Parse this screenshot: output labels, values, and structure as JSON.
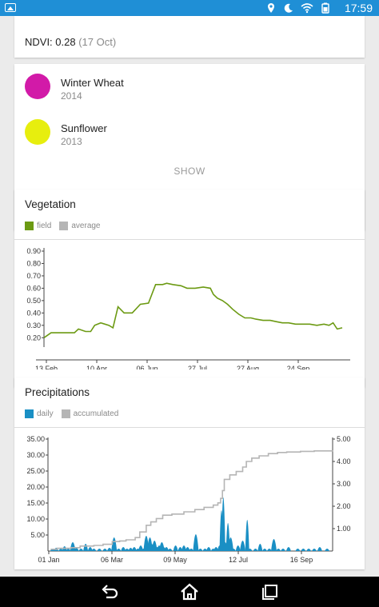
{
  "status_bar": {
    "time": "17:59",
    "icons": [
      "image-icon",
      "location-icon",
      "moon-icon",
      "wifi-icon",
      "battery-icon"
    ]
  },
  "ndvi": {
    "label": "NDVI: 0.28",
    "date": "(17 Oct)"
  },
  "crops": [
    {
      "name": "Winter Wheat",
      "year": "2014",
      "color": "#d21aa8"
    },
    {
      "name": "Sunflower",
      "year": "2013",
      "color": "#e7ee0e"
    }
  ],
  "show_label": "SHOW",
  "vegetation": {
    "title": "Vegetation",
    "legend": [
      {
        "label": "field",
        "color": "#6c9a13"
      },
      {
        "label": "average",
        "color": "#b5b5b5"
      }
    ]
  },
  "precipitations": {
    "title": "Precipitations",
    "legend": [
      {
        "label": "daily",
        "color": "#1a8fc4"
      },
      {
        "label": "accumulated",
        "color": "#b5b5b5"
      }
    ]
  },
  "chart_data": [
    {
      "type": "line",
      "title": "",
      "x_ticks": [
        "13 Feb",
        "10 Apr",
        "06 Jun",
        "27 Jul",
        "27 Aug",
        "24 Sep"
      ],
      "y_ticks": [
        "0.90",
        "0.80",
        "0.70",
        "0.60",
        "0.50",
        "0.40",
        "0.30",
        "0.20"
      ],
      "ylim": [
        0.15,
        0.9
      ],
      "series": [
        {
          "name": "field",
          "color": "#6c9a13",
          "points": [
            [
              "02-13",
              0.2
            ],
            [
              "02-20",
              0.24
            ],
            [
              "03-07",
              0.24
            ],
            [
              "03-15",
              0.24
            ],
            [
              "03-19",
              0.27
            ],
            [
              "03-26",
              0.25
            ],
            [
              "03-31",
              0.25
            ],
            [
              "04-04",
              0.3
            ],
            [
              "04-10",
              0.32
            ],
            [
              "04-18",
              0.3
            ],
            [
              "04-22",
              0.28
            ],
            [
              "04-27",
              0.45
            ],
            [
              "05-03",
              0.4
            ],
            [
              "05-11",
              0.4
            ],
            [
              "05-19",
              0.47
            ],
            [
              "05-27",
              0.48
            ],
            [
              "06-03",
              0.63
            ],
            [
              "06-10",
              0.63
            ],
            [
              "06-14",
              0.64
            ],
            [
              "06-20",
              0.63
            ],
            [
              "06-28",
              0.62
            ],
            [
              "07-04",
              0.6
            ],
            [
              "07-12",
              0.6
            ],
            [
              "07-20",
              0.61
            ],
            [
              "07-27",
              0.6
            ],
            [
              "07-30",
              0.55
            ],
            [
              "08-03",
              0.52
            ],
            [
              "08-08",
              0.5
            ],
            [
              "08-13",
              0.47
            ],
            [
              "08-18",
              0.43
            ],
            [
              "08-24",
              0.39
            ],
            [
              "08-30",
              0.36
            ],
            [
              "09-05",
              0.36
            ],
            [
              "09-10",
              0.35
            ],
            [
              "09-17",
              0.34
            ],
            [
              "09-24",
              0.34
            ],
            [
              "09-30",
              0.33
            ],
            [
              "10-06",
              0.32
            ],
            [
              "10-12",
              0.32
            ],
            [
              "10-19",
              0.31
            ],
            [
              "10-26",
              0.31
            ],
            [
              "11-02",
              0.31
            ],
            [
              "11-09",
              0.3
            ],
            [
              "11-16",
              0.31
            ],
            [
              "11-21",
              0.3
            ],
            [
              "11-25",
              0.32
            ],
            [
              "11-29",
              0.27
            ],
            [
              "12-04",
              0.28
            ]
          ]
        }
      ]
    },
    {
      "type": "bar",
      "title": "",
      "x_ticks": [
        "01 Jan",
        "06 Mar",
        "09 May",
        "12 Jul",
        "16 Sep"
      ],
      "y_left_ticks": [
        "35.00",
        "30.00",
        "25.00",
        "20.00",
        "15.00",
        "10.00",
        "5.00"
      ],
      "y_right_ticks": [
        "5.00",
        "4.00",
        "3.00",
        "2.00",
        "1.00"
      ],
      "ylim_left": [
        0,
        35
      ],
      "ylim_right": [
        0,
        5
      ],
      "xlim_days": [
        0,
        310
      ],
      "series": [
        {
          "name": "daily",
          "color": "#1a8fc4",
          "points": [
            [
              5,
              1
            ],
            [
              9,
              1.5
            ],
            [
              14,
              1
            ],
            [
              18,
              2.5
            ],
            [
              22,
              1
            ],
            [
              27,
              5
            ],
            [
              31,
              1.5
            ],
            [
              36,
              1
            ],
            [
              41,
              4
            ],
            [
              46,
              2
            ],
            [
              50,
              1
            ],
            [
              56,
              1
            ],
            [
              62,
              1
            ],
            [
              67,
              1.5
            ],
            [
              72,
              8
            ],
            [
              77,
              1
            ],
            [
              82,
              2
            ],
            [
              86,
              1
            ],
            [
              90,
              1.5
            ],
            [
              94,
              2
            ],
            [
              98,
              1
            ],
            [
              101,
              3
            ],
            [
              104,
              1
            ],
            [
              107,
              9
            ],
            [
              109,
              2
            ],
            [
              111,
              8
            ],
            [
              113,
              4
            ],
            [
              116,
              6
            ],
            [
              119,
              2
            ],
            [
              121,
              3
            ],
            [
              124,
              5
            ],
            [
              126,
              2
            ],
            [
              129,
              2
            ],
            [
              133,
              1
            ],
            [
              139,
              3
            ],
            [
              144,
              2
            ],
            [
              148,
              3
            ],
            [
              152,
              2
            ],
            [
              156,
              1
            ],
            [
              161,
              10
            ],
            [
              166,
              1
            ],
            [
              171,
              1
            ],
            [
              175,
              2
            ],
            [
              180,
              1
            ],
            [
              183,
              2
            ],
            [
              187,
              3
            ],
            [
              189,
              25
            ],
            [
              191,
              33
            ],
            [
              193,
              5
            ],
            [
              196,
              17
            ],
            [
              199,
              8
            ],
            [
              202,
              1
            ],
            [
              207,
              3
            ],
            [
              212,
              6
            ],
            [
              217,
              19
            ],
            [
              220,
              1
            ],
            [
              226,
              1
            ],
            [
              231,
              4
            ],
            [
              236,
              1
            ],
            [
              241,
              1
            ],
            [
              246,
              7
            ],
            [
              251,
              1
            ],
            [
              256,
              1
            ],
            [
              262,
              2
            ],
            [
              272,
              1
            ],
            [
              278,
              1
            ],
            [
              284,
              1
            ],
            [
              290,
              1
            ],
            [
              296,
              2
            ],
            [
              304,
              1
            ]
          ]
        },
        {
          "name": "accumulated",
          "color": "#b5b5b5",
          "points": [
            [
              3,
              0.08
            ],
            [
              10,
              0.12
            ],
            [
              25,
              0.15
            ],
            [
              35,
              0.22
            ],
            [
              50,
              0.25
            ],
            [
              60,
              0.3
            ],
            [
              70,
              0.42
            ],
            [
              78,
              0.45
            ],
            [
              85,
              0.5
            ],
            [
              95,
              0.6
            ],
            [
              100,
              0.85
            ],
            [
              107,
              1.15
            ],
            [
              112,
              1.3
            ],
            [
              118,
              1.45
            ],
            [
              125,
              1.6
            ],
            [
              135,
              1.65
            ],
            [
              148,
              1.75
            ],
            [
              160,
              1.85
            ],
            [
              170,
              1.95
            ],
            [
              180,
              2.05
            ],
            [
              185,
              2.15
            ],
            [
              188,
              2.35
            ],
            [
              190,
              2.7
            ],
            [
              192,
              3.2
            ],
            [
              198,
              3.4
            ],
            [
              205,
              3.55
            ],
            [
              212,
              3.75
            ],
            [
              216,
              4.0
            ],
            [
              222,
              4.15
            ],
            [
              230,
              4.25
            ],
            [
              240,
              4.35
            ],
            [
              250,
              4.4
            ],
            [
              260,
              4.42
            ],
            [
              275,
              4.45
            ],
            [
              290,
              4.47
            ],
            [
              310,
              4.49
            ]
          ]
        }
      ]
    }
  ]
}
